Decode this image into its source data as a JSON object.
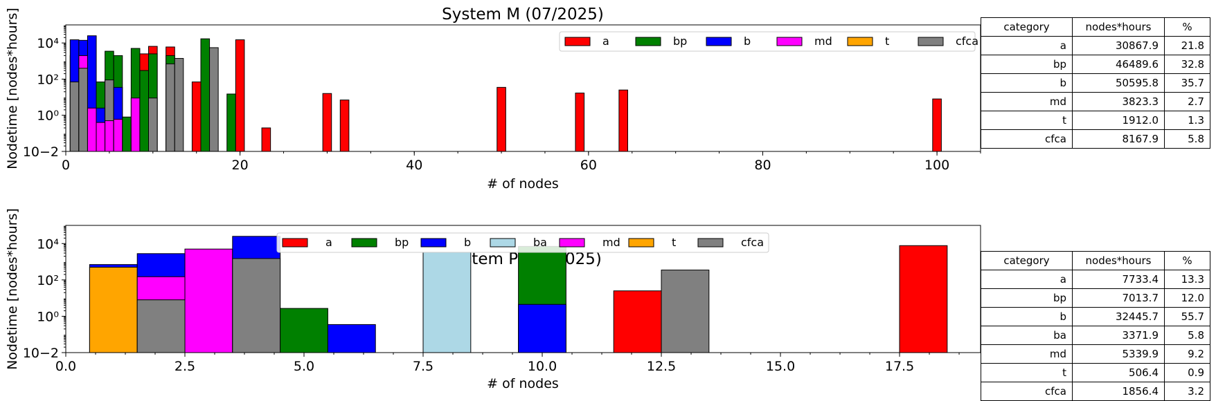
{
  "colors": {
    "a": "#ff0000",
    "bp": "#008000",
    "b": "#0000ff",
    "ba": "#add8e6",
    "md": "#ff00ff",
    "t": "#ffa500",
    "cfca": "#808080"
  },
  "table_headers": [
    "category",
    "nodes*hours",
    "%"
  ],
  "chart_data": [
    {
      "type": "bar",
      "title": "System M (07/2025)",
      "xlabel": "# of nodes",
      "ylabel": "Nodetime [nodes*hours]",
      "yscale": "log",
      "xlim": [
        0,
        105
      ],
      "ylim": [
        0.01,
        100000
      ],
      "xticks": [
        "0",
        "20",
        "40",
        "60",
        "80",
        "100"
      ],
      "yticks": [
        "10−2",
        "10⁰",
        "10²",
        "10⁴"
      ],
      "legend": [
        "a",
        "bp",
        "b",
        "md",
        "t",
        "cfca"
      ],
      "legend_position": "top-right",
      "bar_width": 1,
      "bars": [
        {
          "x": 1,
          "t": 2000,
          "b": 15000,
          "cfca": 70
        },
        {
          "x": 2,
          "b": 14000,
          "md": 2000,
          "cfca": 400
        },
        {
          "x": 3,
          "b": 25000,
          "md": 2.5
        },
        {
          "x": 4,
          "bp": 70,
          "b": 2.5,
          "md": 0.4
        },
        {
          "x": 5,
          "bp": 3500,
          "cfca": 90,
          "md": 0.5
        },
        {
          "x": 6,
          "bp": 2000,
          "b": 35,
          "md": 0.6
        },
        {
          "x": 7,
          "bp": 0.8
        },
        {
          "x": 8,
          "bp": 5000,
          "md": 9
        },
        {
          "x": 9,
          "a": 2500,
          "bp": 300
        },
        {
          "x": 10,
          "a": 6500,
          "bp": 2500,
          "cfca": 9
        },
        {
          "x": 12,
          "a": 6000,
          "bp": 2000,
          "cfca": 700
        },
        {
          "x": 13,
          "cfca": 1400
        },
        {
          "x": 15,
          "a": 70
        },
        {
          "x": 16,
          "bp": 17000
        },
        {
          "x": 17,
          "cfca": 5500
        },
        {
          "x": 19,
          "bp": 15
        },
        {
          "x": 20,
          "a": 15000
        },
        {
          "x": 23,
          "a": 0.2
        },
        {
          "x": 30,
          "a": 16
        },
        {
          "x": 32,
          "a": 7
        },
        {
          "x": 50,
          "a": 35
        },
        {
          "x": 59,
          "a": 17
        },
        {
          "x": 64,
          "a": 25
        },
        {
          "x": 100,
          "a": 8
        }
      ],
      "table": [
        {
          "category": "a",
          "nodes_hours": "30867.9",
          "pct": "21.8"
        },
        {
          "category": "bp",
          "nodes_hours": "46489.6",
          "pct": "32.8"
        },
        {
          "category": "b",
          "nodes_hours": "50595.8",
          "pct": "35.7"
        },
        {
          "category": "md",
          "nodes_hours": "3823.3",
          "pct": "2.7"
        },
        {
          "category": "t",
          "nodes_hours": "1912.0",
          "pct": "1.3"
        },
        {
          "category": "cfca",
          "nodes_hours": "8167.9",
          "pct": "5.8"
        }
      ]
    },
    {
      "type": "bar",
      "title": "System P (07/2025)",
      "xlabel": "# of nodes",
      "ylabel": "Nodetime [nodes*hours]",
      "yscale": "log",
      "xlim": [
        0,
        19.2
      ],
      "ylim": [
        0.01,
        100000
      ],
      "xticks": [
        "0.0",
        "2.5",
        "5.0",
        "7.5",
        "10.0",
        "12.5",
        "15.0",
        "17.5"
      ],
      "yticks": [
        "10−2",
        "10⁰",
        "10²",
        "10⁴"
      ],
      "legend": [
        "a",
        "bp",
        "b",
        "ba",
        "md",
        "t",
        "cfca"
      ],
      "legend_position": "top-center",
      "bar_width": 1,
      "bars": [
        {
          "x": 1,
          "b": 700,
          "t": 500
        },
        {
          "x": 2,
          "b": 2800,
          "md": 150,
          "cfca": 8
        },
        {
          "x": 3,
          "md": 5000
        },
        {
          "x": 4,
          "b": 25000,
          "cfca": 1500
        },
        {
          "x": 5,
          "bp": 2.7
        },
        {
          "x": 6,
          "b": 0.35
        },
        {
          "x": 8,
          "ba": 3300
        },
        {
          "x": 10,
          "bp": 7000,
          "b": 4.5
        },
        {
          "x": 12,
          "a": 25
        },
        {
          "x": 13,
          "cfca": 350
        },
        {
          "x": 18,
          "a": 7700
        }
      ],
      "table": [
        {
          "category": "a",
          "nodes_hours": "7733.4",
          "pct": "13.3"
        },
        {
          "category": "bp",
          "nodes_hours": "7013.7",
          "pct": "12.0"
        },
        {
          "category": "b",
          "nodes_hours": "32445.7",
          "pct": "55.7"
        },
        {
          "category": "ba",
          "nodes_hours": "3371.9",
          "pct": "5.8"
        },
        {
          "category": "md",
          "nodes_hours": "5339.9",
          "pct": "9.2"
        },
        {
          "category": "t",
          "nodes_hours": "506.4",
          "pct": "0.9"
        },
        {
          "category": "cfca",
          "nodes_hours": "1856.4",
          "pct": "3.2"
        }
      ]
    }
  ]
}
